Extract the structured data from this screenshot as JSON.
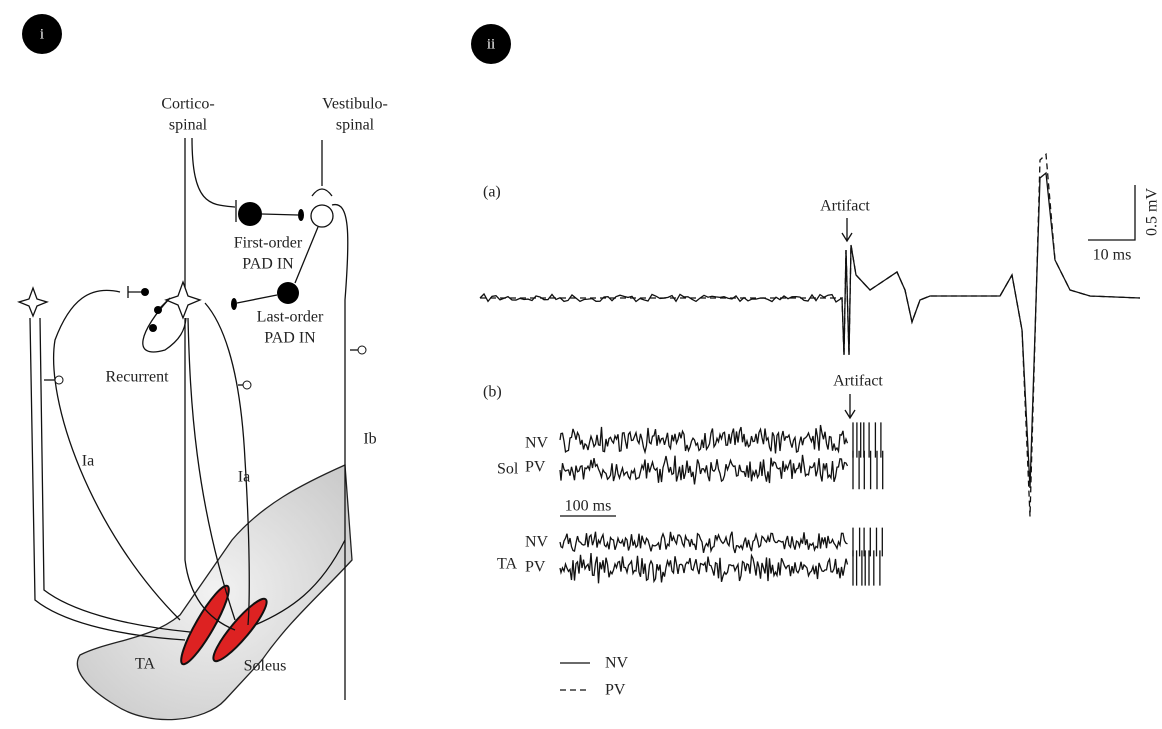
{
  "panel_i": {
    "badge": "i",
    "corticospinal": [
      "Cortico-",
      "spinal"
    ],
    "vestibulospinal": [
      "Vestibulo-",
      "spinal"
    ],
    "first_order": [
      "First-order",
      "PAD IN"
    ],
    "last_order": [
      "Last-order",
      "PAD IN"
    ],
    "recurrent": "Recurrent",
    "ia_left": "Ia",
    "ia_right": "Ia",
    "ib": "Ib",
    "ta": "TA",
    "soleus": "Soleus"
  },
  "panel_ii": {
    "badge": "ii",
    "a": {
      "label": "(a)",
      "artifact": "Artifact",
      "scale_v": "0.5 mV",
      "scale_t": "10 ms"
    },
    "b": {
      "label": "(b)",
      "artifact": "Artifact",
      "scale_t": "100 ms",
      "sol": {
        "muscle": "Sol",
        "nv": "NV",
        "pv": "PV"
      },
      "ta": {
        "muscle": "TA",
        "nv": "NV",
        "pv": "PV"
      }
    },
    "legend": {
      "nv": "NV",
      "pv": "PV"
    }
  }
}
